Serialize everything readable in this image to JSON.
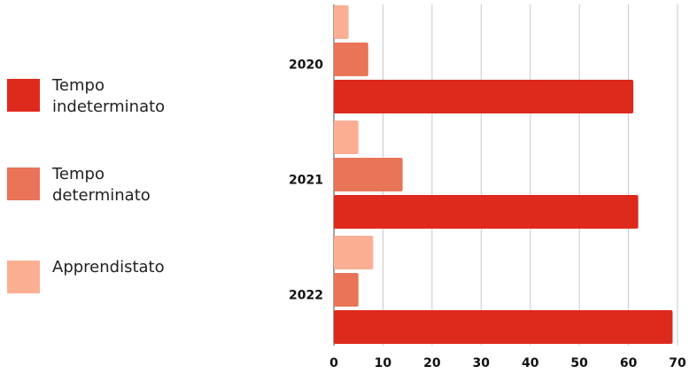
{
  "chart_data": {
    "type": "bar",
    "orientation": "horizontal",
    "categories": [
      "2020",
      "2021",
      "2022"
    ],
    "series": [
      {
        "name": "Apprendistato",
        "values": [
          3,
          5,
          8
        ],
        "color": "#FCAE93"
      },
      {
        "name": "Tempo determinato",
        "values": [
          7,
          14,
          5
        ],
        "color": "#E97458"
      },
      {
        "name": "Tempo indeterminato",
        "values": [
          61,
          62,
          69
        ],
        "color": "#DD2A1D"
      }
    ],
    "xlim": [
      0,
      70
    ],
    "xticks": [
      "0",
      "10",
      "20",
      "30",
      "40",
      "50",
      "60",
      "70"
    ],
    "grid": "vertical",
    "legend_position": "left",
    "title": "",
    "xlabel": "",
    "ylabel": ""
  },
  "legend": [
    {
      "label": "Tempo indeterminato",
      "color": "#DD2A1D"
    },
    {
      "label": "Tempo determinato",
      "color": "#E97458"
    },
    {
      "label": "Apprendistato",
      "color": "#FCAE93"
    }
  ]
}
